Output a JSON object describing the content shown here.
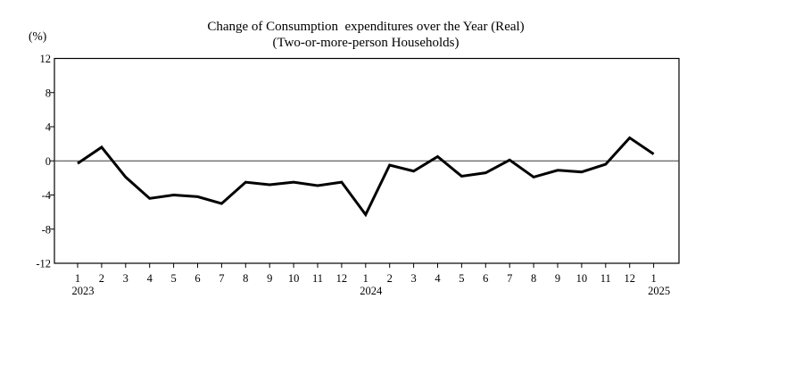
{
  "chart_data": {
    "type": "line",
    "title": "Change of Consumption  expenditures over the Year (Real)",
    "subtitle": "(Two-or-more-person Households)",
    "unit_label": "(%)",
    "categories": [
      "1",
      "2",
      "3",
      "4",
      "5",
      "6",
      "7",
      "8",
      "9",
      "10",
      "11",
      "12",
      "1",
      "2",
      "3",
      "4",
      "5",
      "6",
      "7",
      "8",
      "9",
      "10",
      "11",
      "12",
      "1"
    ],
    "year_markers": [
      {
        "index": 0,
        "label": "2023"
      },
      {
        "index": 12,
        "label": "2024"
      },
      {
        "index": 24,
        "label": "2025"
      }
    ],
    "series": [
      {
        "name": "Change of consumption expenditures over the year (real)",
        "values": [
          -0.3,
          1.6,
          -1.9,
          -4.4,
          -4.0,
          -4.2,
          -5.0,
          -2.5,
          -2.8,
          -2.5,
          -2.9,
          -2.5,
          -6.3,
          -0.5,
          -1.2,
          0.5,
          -1.8,
          -1.4,
          0.1,
          -1.9,
          -1.1,
          -1.3,
          -0.4,
          2.7,
          0.8
        ]
      }
    ],
    "ylim": [
      -12,
      12
    ],
    "yticks": [
      12,
      8,
      4,
      0,
      -4,
      -8,
      -12
    ],
    "grid": false,
    "zero_line": true,
    "legend_position": "none",
    "line_color": "#000000",
    "axis_color": "#000000",
    "zero_line_color": "#3c3c3c"
  }
}
